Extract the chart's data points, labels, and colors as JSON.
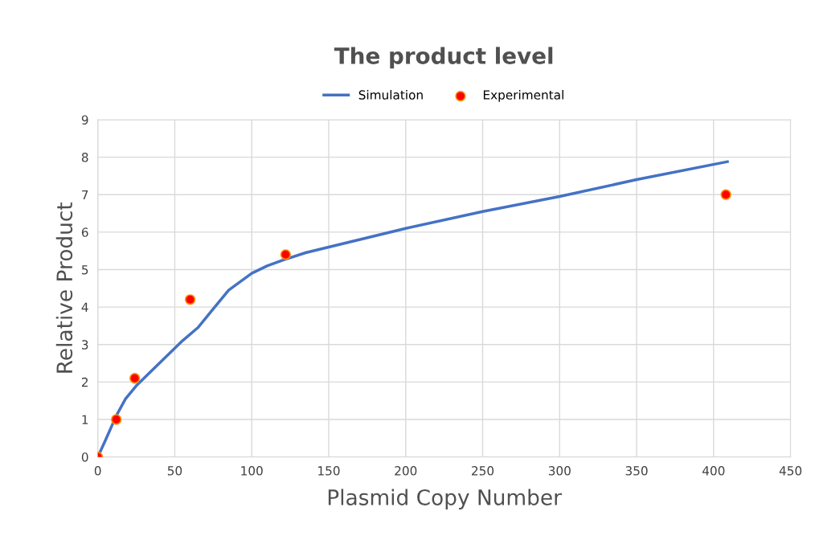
{
  "chart_data": {
    "type": "line",
    "title": "The product level",
    "xlabel": "Plasmid Copy Number",
    "ylabel": "Relative Product",
    "xlim": [
      0,
      450
    ],
    "xticks": [
      0,
      50,
      100,
      150,
      200,
      250,
      300,
      350,
      400,
      450
    ],
    "ylim": [
      0,
      9
    ],
    "yticks": [
      0,
      1,
      2,
      3,
      4,
      5,
      6,
      7,
      8,
      9
    ],
    "grid": true,
    "legend": "top",
    "series": [
      {
        "name": "Simulation",
        "color": "#4472c4",
        "marker": "none",
        "x": [
          0,
          5,
          12,
          18,
          25,
          40,
          55,
          65,
          75,
          85,
          100,
          110,
          120,
          135,
          150,
          200,
          250,
          300,
          350,
          409
        ],
        "values": [
          0,
          0.45,
          1.1,
          1.55,
          1.9,
          2.5,
          3.1,
          3.45,
          3.95,
          4.45,
          4.9,
          5.1,
          5.25,
          5.45,
          5.6,
          6.1,
          6.55,
          6.95,
          7.4,
          7.88
        ]
      },
      {
        "name": "Experimental",
        "type": "scatter",
        "color": "#ff0000",
        "marker": "circle",
        "x": [
          0,
          12,
          24,
          60,
          122,
          408
        ],
        "values": [
          0,
          1,
          2.1,
          4.2,
          5.4,
          7.0
        ]
      }
    ]
  }
}
